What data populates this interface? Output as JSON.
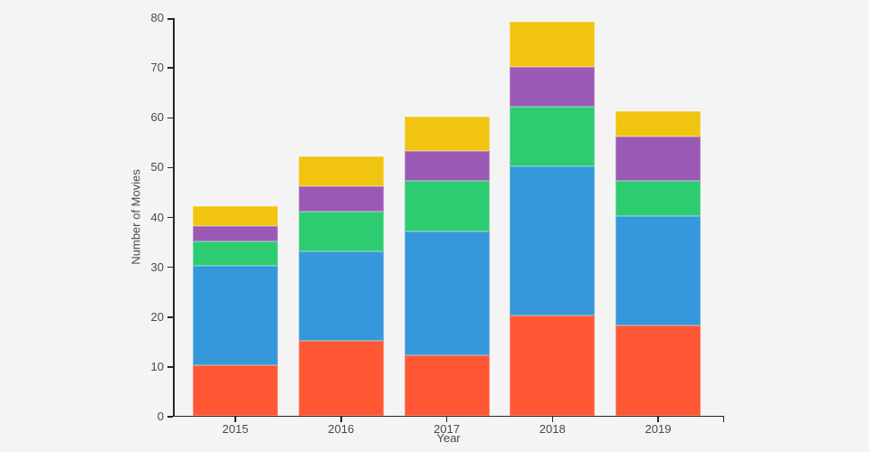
{
  "colors": {
    "background": "#f4f4f4",
    "axis": "#262626",
    "text": "#4a4a4a"
  },
  "chart_data": {
    "type": "bar",
    "stacked": true,
    "title": "",
    "xlabel": "Year",
    "ylabel": "Number of Movies",
    "categories": [
      "2015",
      "2016",
      "2017",
      "2018",
      "2019"
    ],
    "series": [
      {
        "name": "red",
        "color": "#ff5733",
        "values": [
          10,
          15,
          12,
          20,
          18
        ]
      },
      {
        "name": "blue",
        "color": "#3498db",
        "values": [
          20,
          18,
          25,
          30,
          22
        ]
      },
      {
        "name": "green",
        "color": "#2ecc71",
        "values": [
          5,
          8,
          10,
          12,
          7
        ]
      },
      {
        "name": "purple",
        "color": "#9b59b6",
        "values": [
          3,
          5,
          6,
          8,
          9
        ]
      },
      {
        "name": "yellow",
        "color": "#f1c40f",
        "values": [
          4,
          6,
          7,
          9,
          5
        ]
      }
    ],
    "stack_totals": [
      42,
      52,
      60,
      79,
      61
    ],
    "ylim": [
      0,
      80
    ],
    "yticks": [
      0,
      10,
      20,
      30,
      40,
      50,
      60,
      70,
      80
    ],
    "grid": false,
    "legend": "none"
  }
}
